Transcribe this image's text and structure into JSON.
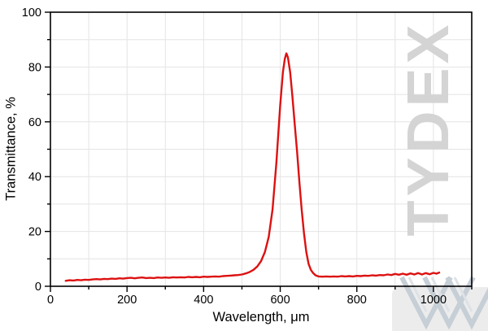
{
  "watermark": {
    "text": "TYDEX",
    "text_color": "#d4d4d4",
    "logo_stroke_color": "#c6ced6",
    "logo_patch_color": "#ececec"
  },
  "colors": {
    "line": "#dd1111",
    "grid": "#e4e4e4",
    "axis": "#000000",
    "background": "#ffffff"
  },
  "chart_data": {
    "type": "line",
    "title": "",
    "xlabel": "Wavelength, μm",
    "ylabel": "Transmittance, %",
    "xlim": [
      0,
      1100
    ],
    "ylim": [
      0,
      100
    ],
    "x_major_ticks": [
      0,
      200,
      400,
      600,
      800,
      1000
    ],
    "x_minor_ticks": [
      100,
      300,
      500,
      700,
      900,
      1100
    ],
    "y_major_ticks": [
      0,
      20,
      40,
      60,
      80,
      100
    ],
    "y_minor_ticks": [
      10,
      30,
      50,
      70,
      90
    ],
    "grid": "on",
    "grid_spacing": {
      "x_um": 100,
      "y_percent": 10
    },
    "legend": "none",
    "series": [
      {
        "name": "transmittance",
        "color": "#dd1111",
        "x": [
          40,
          50,
          60,
          70,
          80,
          90,
          100,
          110,
          120,
          130,
          140,
          150,
          160,
          170,
          180,
          190,
          200,
          210,
          220,
          230,
          240,
          250,
          260,
          270,
          280,
          290,
          300,
          310,
          320,
          330,
          340,
          350,
          360,
          370,
          380,
          390,
          400,
          410,
          420,
          430,
          440,
          450,
          460,
          470,
          480,
          490,
          500,
          510,
          520,
          530,
          540,
          550,
          560,
          570,
          580,
          590,
          600,
          607,
          612,
          616,
          620,
          626,
          632,
          638,
          644,
          650,
          656,
          662,
          668,
          674,
          680,
          686,
          692,
          700,
          710,
          720,
          730,
          740,
          750,
          760,
          770,
          780,
          790,
          800,
          810,
          820,
          830,
          840,
          850,
          860,
          870,
          880,
          890,
          900,
          910,
          920,
          930,
          940,
          950,
          960,
          970,
          980,
          990,
          1000,
          1008,
          1015
        ],
        "y": [
          2.0,
          2.2,
          2.1,
          2.3,
          2.2,
          2.4,
          2.3,
          2.5,
          2.6,
          2.5,
          2.7,
          2.6,
          2.8,
          2.7,
          2.9,
          2.8,
          3.0,
          3.1,
          2.9,
          3.1,
          3.2,
          3.0,
          3.1,
          3.0,
          3.2,
          3.1,
          3.2,
          3.1,
          3.3,
          3.2,
          3.3,
          3.2,
          3.4,
          3.3,
          3.4,
          3.3,
          3.5,
          3.4,
          3.5,
          3.6,
          3.5,
          3.7,
          3.8,
          3.9,
          4.0,
          4.1,
          4.3,
          4.7,
          5.2,
          6.0,
          7.2,
          9.2,
          12.5,
          18.0,
          28.0,
          45.0,
          66.0,
          78.0,
          83.0,
          85.0,
          83.5,
          78.0,
          69.0,
          59.0,
          49.0,
          38.0,
          28.0,
          19.5,
          12.5,
          8.2,
          6.0,
          4.8,
          4.0,
          3.6,
          3.5,
          3.6,
          3.5,
          3.6,
          3.5,
          3.7,
          3.6,
          3.7,
          3.6,
          3.8,
          3.7,
          3.9,
          3.8,
          4.0,
          3.9,
          4.1,
          4.0,
          4.3,
          4.1,
          4.5,
          4.2,
          4.6,
          4.2,
          4.7,
          4.3,
          4.8,
          4.3,
          4.8,
          4.4,
          4.9,
          4.6,
          5.0
        ]
      }
    ],
    "peak": {
      "wavelength_um": 616,
      "transmittance_percent": 85
    }
  }
}
